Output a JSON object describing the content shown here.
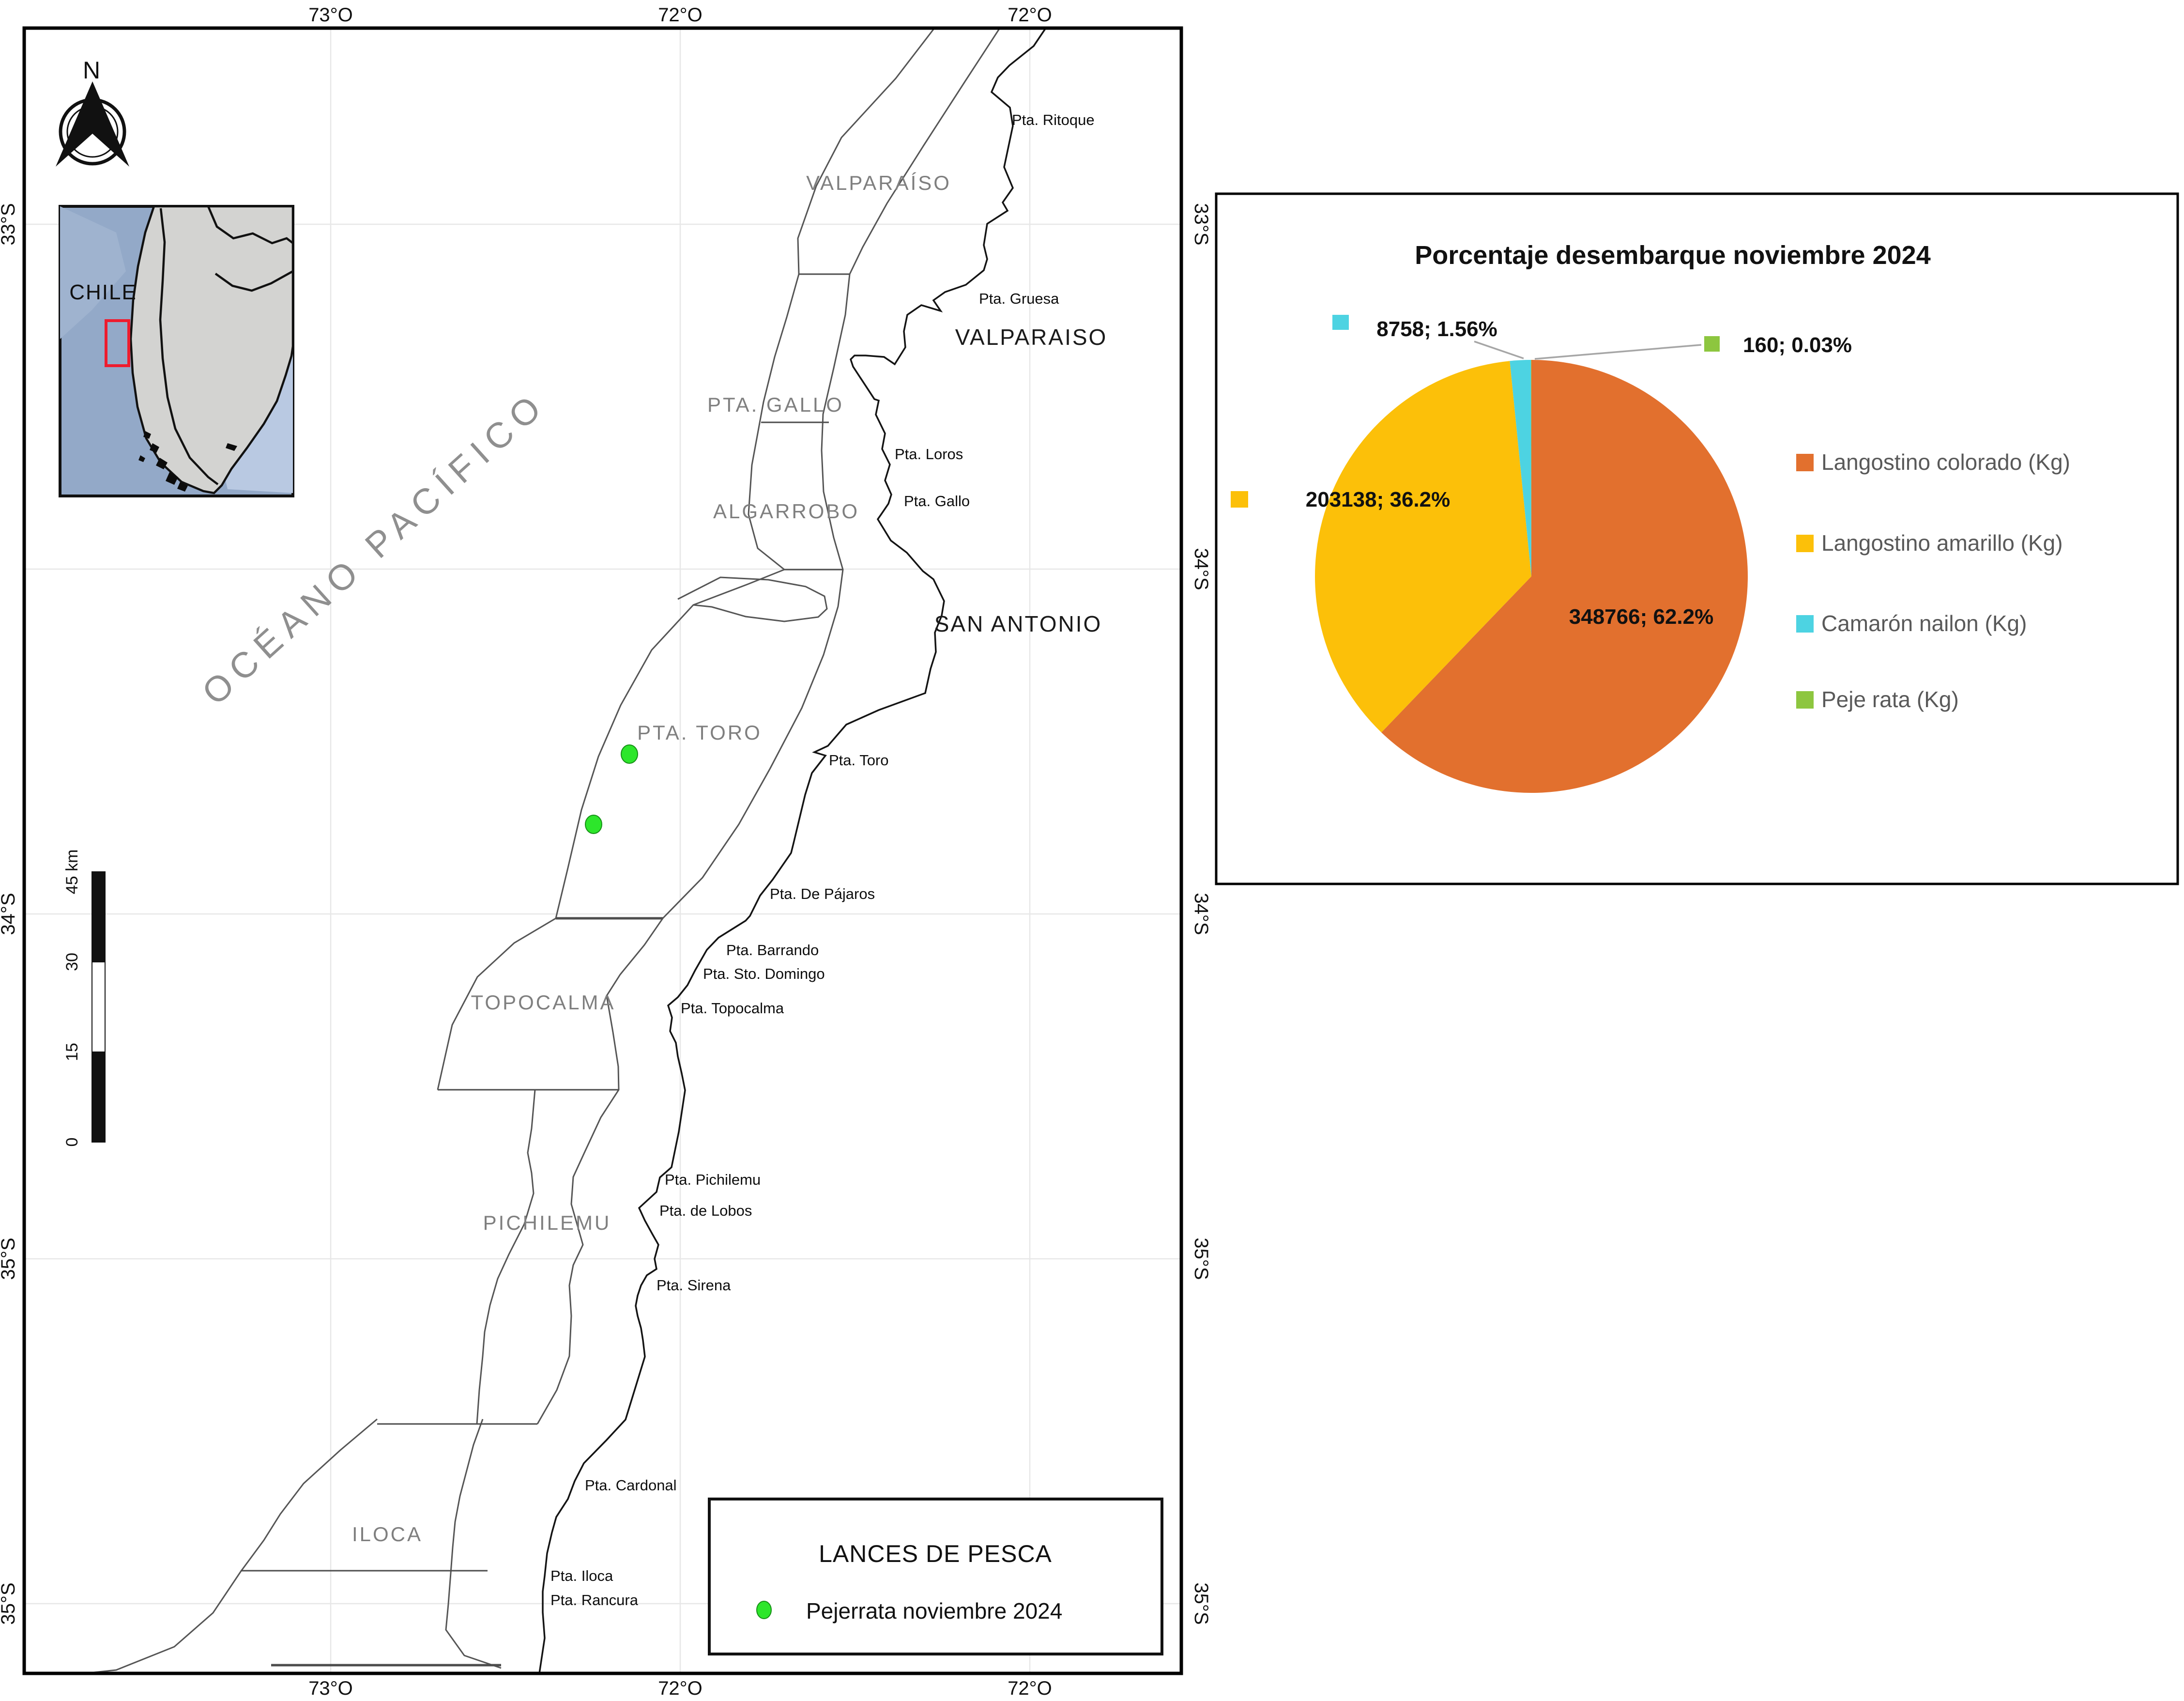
{
  "map": {
    "axis": {
      "top": [
        "73°O",
        "72°O",
        "72°O"
      ],
      "bottom": [
        "73°O",
        "72°O",
        "72°O"
      ],
      "left": [
        "33°S",
        "34°S",
        "35°S",
        "35°S"
      ],
      "right": [
        "33°S",
        "34°S",
        "34°S",
        "35°S",
        "35°S"
      ]
    },
    "ocean_label": "OCÉANO PACÍFICO",
    "north_label": "N",
    "scalebar": {
      "labels": [
        "45 km",
        "30",
        "15",
        "0"
      ]
    },
    "inset": {
      "country_label": "CHILE",
      "locator_color": "#ee1c2e"
    },
    "zones": [
      "VALPARAÍSO",
      "PTA. GALLO",
      "ALGARROBO",
      "PTA. TORO",
      "TOPOCALMA",
      "PICHILEMU",
      "ILOCA"
    ],
    "cities": [
      "VALPARAISO",
      "SAN ANTONIO"
    ],
    "points": [
      "Pta. Ritoque",
      "Pta. Gruesa",
      "Pta. Loros",
      "Pta. Gallo",
      "Pta. Toro",
      "Pta. De Pájaros",
      "Pta. Barrando",
      "Pta. Sto. Domingo",
      "Pta. Topocalma",
      "Pta. Pichilemu",
      "Pta. de Lobos",
      "Pta. Sirena",
      "Pta. Cardonal",
      "Pta. Iloca",
      "Pta. Rancura"
    ],
    "legend": {
      "title": "LANCES DE PESCA",
      "item": "Pejerrata noviembre 2024",
      "marker_color": "#2de62b"
    }
  },
  "chart_data": {
    "type": "pie",
    "title": "Porcentaje desembarque noviembre 2024",
    "categories": [
      "Langostino colorado (Kg)",
      "Langostino amarillo (Kg)",
      "Camarón nailon (Kg)",
      "Peje rata (Kg)"
    ],
    "values": [
      348766,
      203138,
      8758,
      160
    ],
    "percents": [
      62.2,
      36.2,
      1.56,
      0.03
    ],
    "data_labels": [
      "348766; 62.2%",
      "203138; 36.2%",
      "8758; 1.56%",
      "160; 0.03%"
    ],
    "colors": [
      "#e2702e",
      "#fcc009",
      "#4dd3e2",
      "#8dc63f"
    ],
    "legend_position": "right",
    "start_angle_deg": -90,
    "direction": "clockwise"
  }
}
